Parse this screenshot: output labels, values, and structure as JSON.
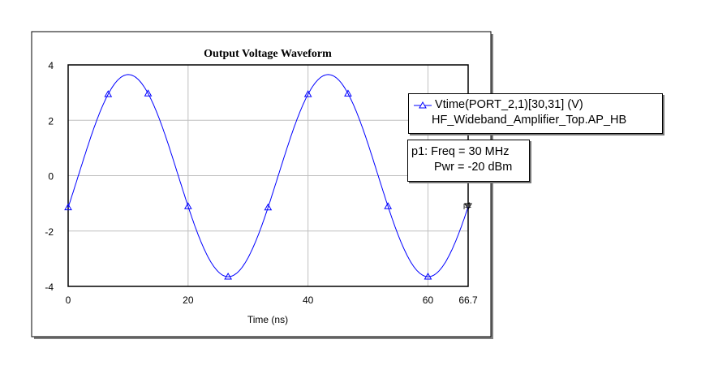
{
  "chart_data": {
    "type": "line",
    "title": "Output Voltage Waveform",
    "xlabel": "Time (ns)",
    "ylabel": "",
    "xlim": [
      0,
      66.7
    ],
    "ylim": [
      -4,
      4
    ],
    "x_ticks": [
      "0",
      "20",
      "40",
      "60",
      "66.7"
    ],
    "x_tick_values": [
      0,
      20,
      40,
      60,
      66.7
    ],
    "y_ticks": [
      "4",
      "2",
      "0",
      "-2",
      "-4"
    ],
    "y_tick_values": [
      4,
      2,
      0,
      -2,
      -4
    ],
    "grid": true,
    "legend_placement": "right",
    "series": [
      {
        "name": "Vtime(PORT_2,1)[30,31] (V)",
        "source": "HF_Wideband_Amplifier_Top.AP_HB",
        "color": "#0000ff",
        "amplitude": 3.65,
        "frequency_mhz": 30,
        "phase_rad": -0.32,
        "marker_x": [
          0,
          6.67,
          13.33,
          20,
          26.67,
          33.33,
          40,
          46.67,
          53.33,
          60,
          66.7
        ]
      }
    ],
    "marker": {
      "label": "p1",
      "line1": "p1: Freq = 30 MHz",
      "line2": "Pwr = -20 dBm",
      "x": 66.7
    }
  }
}
